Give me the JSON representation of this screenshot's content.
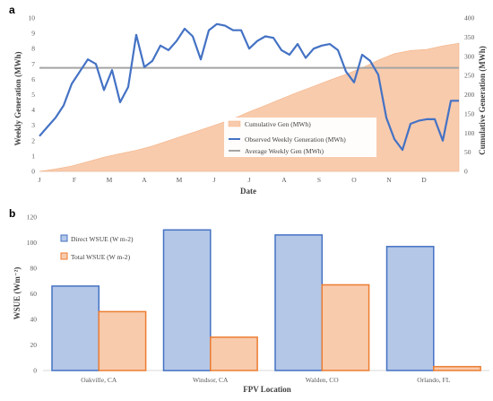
{
  "chart_data": [
    {
      "panel_label": "a",
      "type": "line",
      "x_tick_labels": [
        "J",
        "F",
        "M",
        "A",
        "M",
        "J",
        "J",
        "A",
        "S",
        "O",
        "N",
        "D"
      ],
      "xlabel": "Date",
      "ylabel_left": "Weekly Generation (MWh)",
      "ylabel_right": "Cumulative Generation (MWh)",
      "y_left_ticks": [
        "0",
        "1",
        "2",
        "3",
        "4",
        "5",
        "6",
        "7",
        "8",
        "9",
        "10"
      ],
      "y_right_ticks": [
        "0",
        "50",
        "100",
        "150",
        "200",
        "250",
        "300",
        "350",
        "400"
      ],
      "ylim_left": [
        0,
        10
      ],
      "ylim_right": [
        0,
        400
      ],
      "legend": [
        "Cumulative Gen (MWh)",
        "Observed Weekly Generation (MWh)",
        "Average Weekly Gen (MWh)"
      ],
      "series": [
        {
          "name": "Cumulative Gen (MWh)",
          "axis": "right",
          "style": "area",
          "color": "#f8cbad",
          "week": [
            0,
            2,
            4,
            6,
            8,
            10,
            12,
            14,
            16,
            18,
            20,
            22,
            24,
            26,
            28,
            30,
            32,
            34,
            36,
            38,
            40,
            42,
            44,
            46,
            48,
            50,
            52
          ],
          "values": [
            0,
            6,
            14,
            25,
            37,
            46,
            55,
            66,
            80,
            94,
            108,
            122,
            137,
            155,
            172,
            189,
            206,
            222,
            238,
            253,
            270,
            290,
            307,
            315,
            318,
            327,
            334
          ]
        },
        {
          "name": "Observed Weekly Generation (MWh)",
          "axis": "left",
          "style": "line",
          "color": "#4472c4",
          "week": [
            0,
            1,
            2,
            3,
            4,
            5,
            6,
            7,
            8,
            9,
            10,
            11,
            12,
            13,
            14,
            15,
            16,
            17,
            18,
            19,
            20,
            21,
            22,
            23,
            24,
            25,
            26,
            27,
            28,
            29,
            30,
            31,
            32,
            33,
            34,
            35,
            36,
            37,
            38,
            39,
            40,
            41,
            42,
            43,
            44,
            45,
            46,
            47,
            48,
            49,
            50,
            51,
            52
          ],
          "values": [
            2.3,
            2.9,
            3.5,
            4.3,
            5.7,
            6.5,
            7.3,
            7.0,
            5.3,
            6.6,
            4.5,
            5.5,
            8.9,
            6.8,
            7.2,
            8.2,
            7.9,
            8.5,
            9.3,
            8.8,
            7.3,
            9.2,
            9.6,
            9.5,
            9.2,
            9.2,
            8.0,
            8.5,
            8.8,
            8.7,
            7.9,
            7.6,
            8.3,
            7.4,
            8.0,
            8.2,
            8.3,
            7.9,
            6.5,
            5.8,
            7.6,
            7.2,
            6.3,
            3.5,
            2.1,
            1.4,
            3.1,
            3.3,
            3.4,
            3.4,
            2.0,
            4.6,
            4.6
          ]
        },
        {
          "name": "Average Weekly Gen (MWh)",
          "axis": "left",
          "style": "line",
          "color": "#a5a5a5",
          "values": [
            6.75
          ]
        }
      ]
    },
    {
      "panel_label": "b",
      "type": "bar",
      "categories": [
        "Oakville, CA",
        "Windsor, CA",
        "Walden, CO",
        "Orlando, FL"
      ],
      "xlabel": "FPV Location",
      "ylabel": "WSUE (Wm⁻²)",
      "ylim": [
        0,
        120
      ],
      "y_ticks": [
        "0",
        "20",
        "40",
        "60",
        "80",
        "100",
        "120"
      ],
      "series": [
        {
          "name": "Direct WSUE (W m-2)",
          "color": "#b4c7e7",
          "edge": "#4472c4",
          "values": [
            66,
            110,
            106,
            97
          ]
        },
        {
          "name": "Total WSUE (W m-2)",
          "color": "#f8cbad",
          "edge": "#ed7d31",
          "values": [
            46,
            26,
            67,
            3
          ]
        }
      ]
    }
  ]
}
